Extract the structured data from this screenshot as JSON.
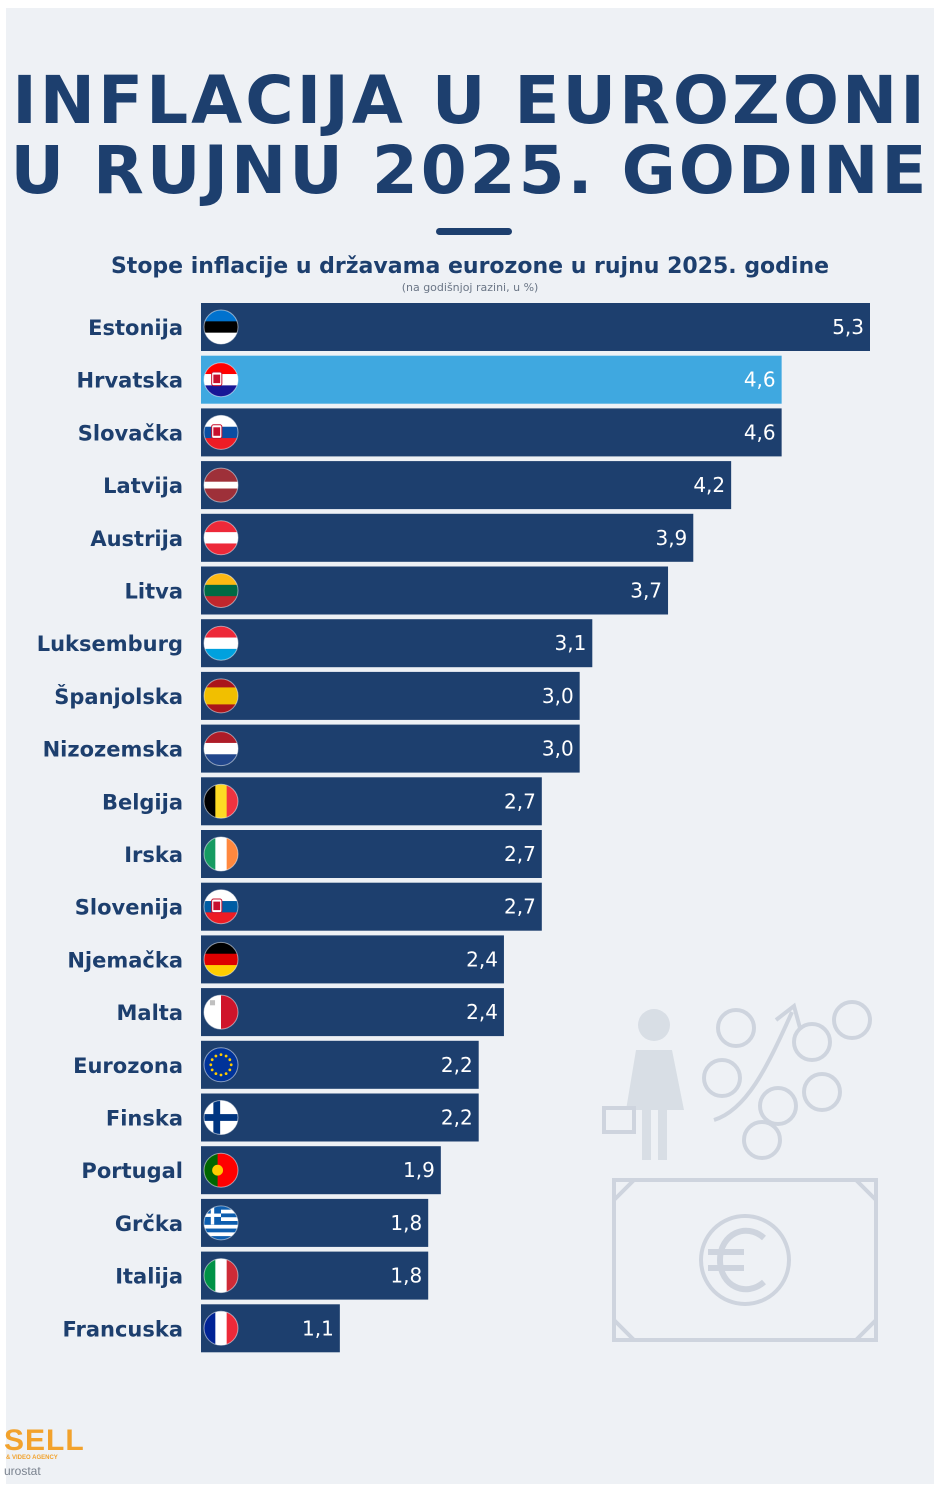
{
  "header": {
    "title_line1": "INFLACIJA U EUROZONI",
    "title_line2": "U RUJNU 2025. GODINE"
  },
  "chart_data": {
    "type": "bar",
    "orientation": "horizontal",
    "title": "Stope inflacije u državama eurozone u rujnu 2025. godine",
    "subtitle": "(na godišnjoj razini, u %)",
    "categories": [
      "Estonija",
      "Hrvatska",
      "Slovačka",
      "Latvija",
      "Austrija",
      "Litva",
      "Luksemburg",
      "Španjolska",
      "Nizozemska",
      "Belgija",
      "Irska",
      "Slovenija",
      "Njemačka",
      "Malta",
      "Eurozona",
      "Finska",
      "Portugal",
      "Grčka",
      "Italija",
      "Francuska"
    ],
    "values": [
      5.3,
      4.6,
      4.6,
      4.2,
      3.9,
      3.7,
      3.1,
      3.0,
      3.0,
      2.7,
      2.7,
      2.7,
      2.4,
      2.4,
      2.2,
      2.2,
      1.9,
      1.8,
      1.8,
      1.1
    ],
    "value_labels": [
      "5,3",
      "4,6",
      "4,6",
      "4,2",
      "3,9",
      "3,7",
      "3,1",
      "3,0",
      "3,0",
      "2,7",
      "2,7",
      "2,7",
      "2,4",
      "2,4",
      "2,2",
      "2,2",
      "1,9",
      "1,8",
      "1,8",
      "1,1"
    ],
    "flags": [
      "estonia",
      "croatia",
      "slovakia",
      "latvia",
      "austria",
      "lithuania",
      "luxembourg",
      "spain",
      "netherlands",
      "belgium",
      "ireland",
      "slovenia",
      "germany",
      "malta",
      "eu",
      "finland",
      "portugal",
      "greece",
      "italy",
      "france"
    ],
    "highlight": "Hrvatska",
    "bar_color": "#1d3f6e",
    "highlight_color": "#3fa8e0",
    "xlim": [
      0,
      5.3
    ],
    "grid": false,
    "legend": "none"
  },
  "footer": {
    "logo_text": "SELL",
    "logo_subtext": "& VIDEO AGENCY",
    "source": "urostat"
  }
}
